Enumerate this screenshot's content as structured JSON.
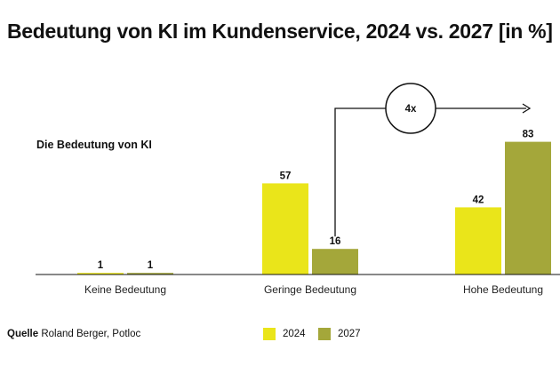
{
  "title": "Bedeutung von KI im Kundenservice, 2024 vs. 2027 [in %]",
  "subtitle": "Die Bedeutung von KI",
  "source": {
    "label": "Quelle",
    "text": "Roland Berger, Potloc"
  },
  "colors": {
    "2024": "#eae51a",
    "2027": "#a4a73a",
    "axis": "#111111",
    "arrow": "#111111"
  },
  "annotation": {
    "text": "4x",
    "from": "Geringe Bedeutung 2027",
    "to": "Hohe Bedeutung 2027"
  },
  "chart_data": {
    "type": "bar",
    "title": "Bedeutung von KI im Kundenservice, 2024 vs. 2027 [in %]",
    "subtitle": "Die Bedeutung von KI",
    "categories": [
      "Keine Bedeutung",
      "Geringe Bedeutung",
      "Hohe Bedeutung"
    ],
    "series": [
      {
        "name": "2024",
        "values": [
          1,
          57,
          42
        ]
      },
      {
        "name": "2027",
        "values": [
          1,
          16,
          83
        ]
      }
    ],
    "data_labels": true,
    "ylim": [
      0,
      100
    ],
    "grid": false,
    "legend": "bottom"
  }
}
